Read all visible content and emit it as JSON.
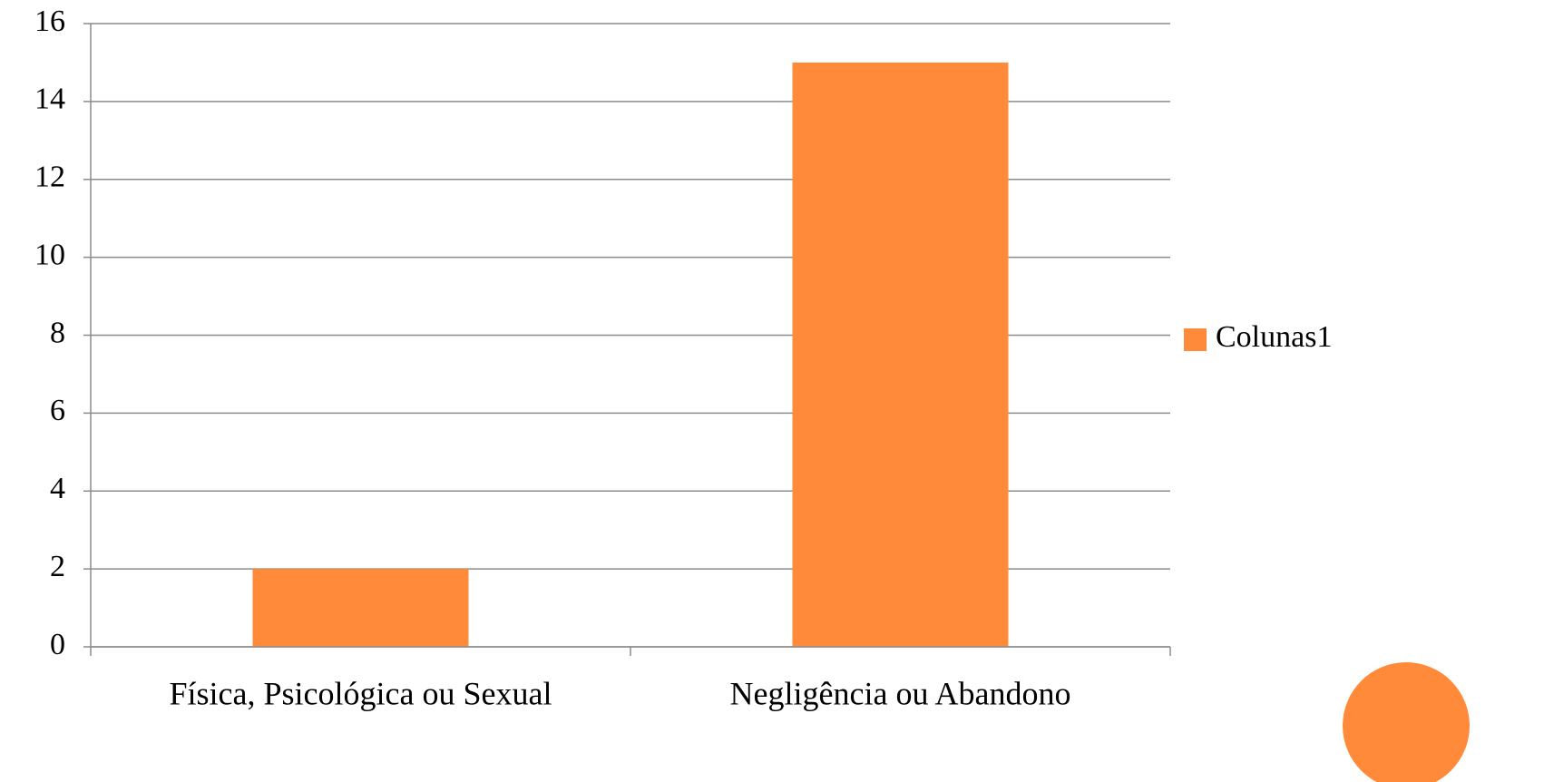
{
  "chart_data": {
    "type": "bar",
    "categories": [
      "Física, Psicológica ou Sexual",
      "Negligência ou Abandono"
    ],
    "series": [
      {
        "name": "Colunas1",
        "color": "#ff8a3a",
        "values": [
          2,
          15
        ]
      }
    ],
    "ylim": [
      0,
      16
    ],
    "yticks": [
      0,
      2,
      4,
      6,
      8,
      10,
      12,
      14,
      16
    ],
    "grid": true,
    "legend": "right"
  }
}
